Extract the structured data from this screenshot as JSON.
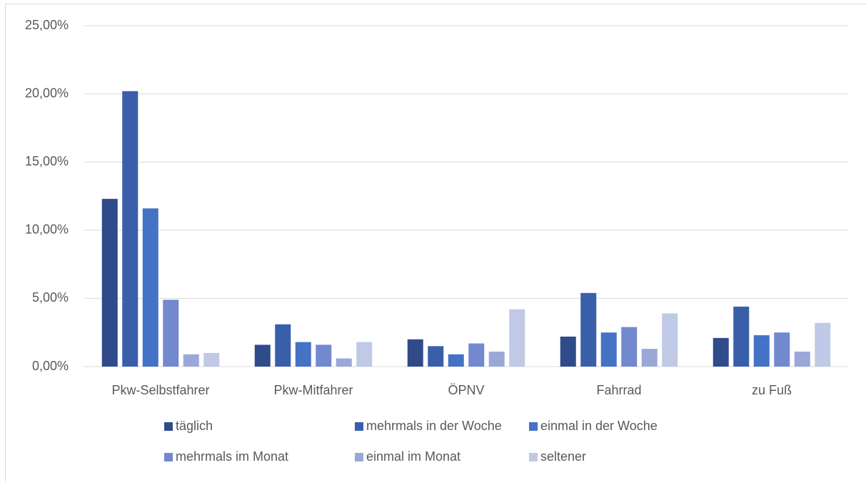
{
  "chart_data": {
    "type": "bar",
    "categories": [
      "Pkw-Selbstfahrer",
      "Pkw-Mitfahrer",
      "ÖPNV",
      "Fahrrad",
      "zu Fuß"
    ],
    "series": [
      {
        "name": "täglich",
        "color": "#2f4b8a",
        "values": [
          12.3,
          1.6,
          2.0,
          2.2,
          2.1
        ]
      },
      {
        "name": "mehrmals in der Woche",
        "color": "#3a5faa",
        "values": [
          20.2,
          3.1,
          1.5,
          5.4,
          4.4
        ]
      },
      {
        "name": "einmal in der Woche",
        "color": "#4472c4",
        "values": [
          11.6,
          1.8,
          0.9,
          2.5,
          2.3
        ]
      },
      {
        "name": "mehrmals im Monat",
        "color": "#7389cf",
        "values": [
          4.9,
          1.6,
          1.7,
          2.9,
          2.5
        ]
      },
      {
        "name": "einmal im Monat",
        "color": "#9aa8d8",
        "values": [
          0.9,
          0.6,
          1.1,
          1.3,
          1.1
        ]
      },
      {
        "name": "seltener",
        "color": "#c0c9e6",
        "values": [
          1.0,
          1.8,
          4.2,
          3.9,
          3.2
        ]
      }
    ],
    "ylim": [
      0,
      25
    ],
    "yticks": [
      {
        "value": 0,
        "label": "0,00%"
      },
      {
        "value": 5,
        "label": "5,00%"
      },
      {
        "value": 10,
        "label": "10,00%"
      },
      {
        "value": 15,
        "label": "15,00%"
      },
      {
        "value": 20,
        "label": "20,00%"
      },
      {
        "value": 25,
        "label": "25,00%"
      }
    ],
    "grid": true,
    "legend": "bottom"
  }
}
